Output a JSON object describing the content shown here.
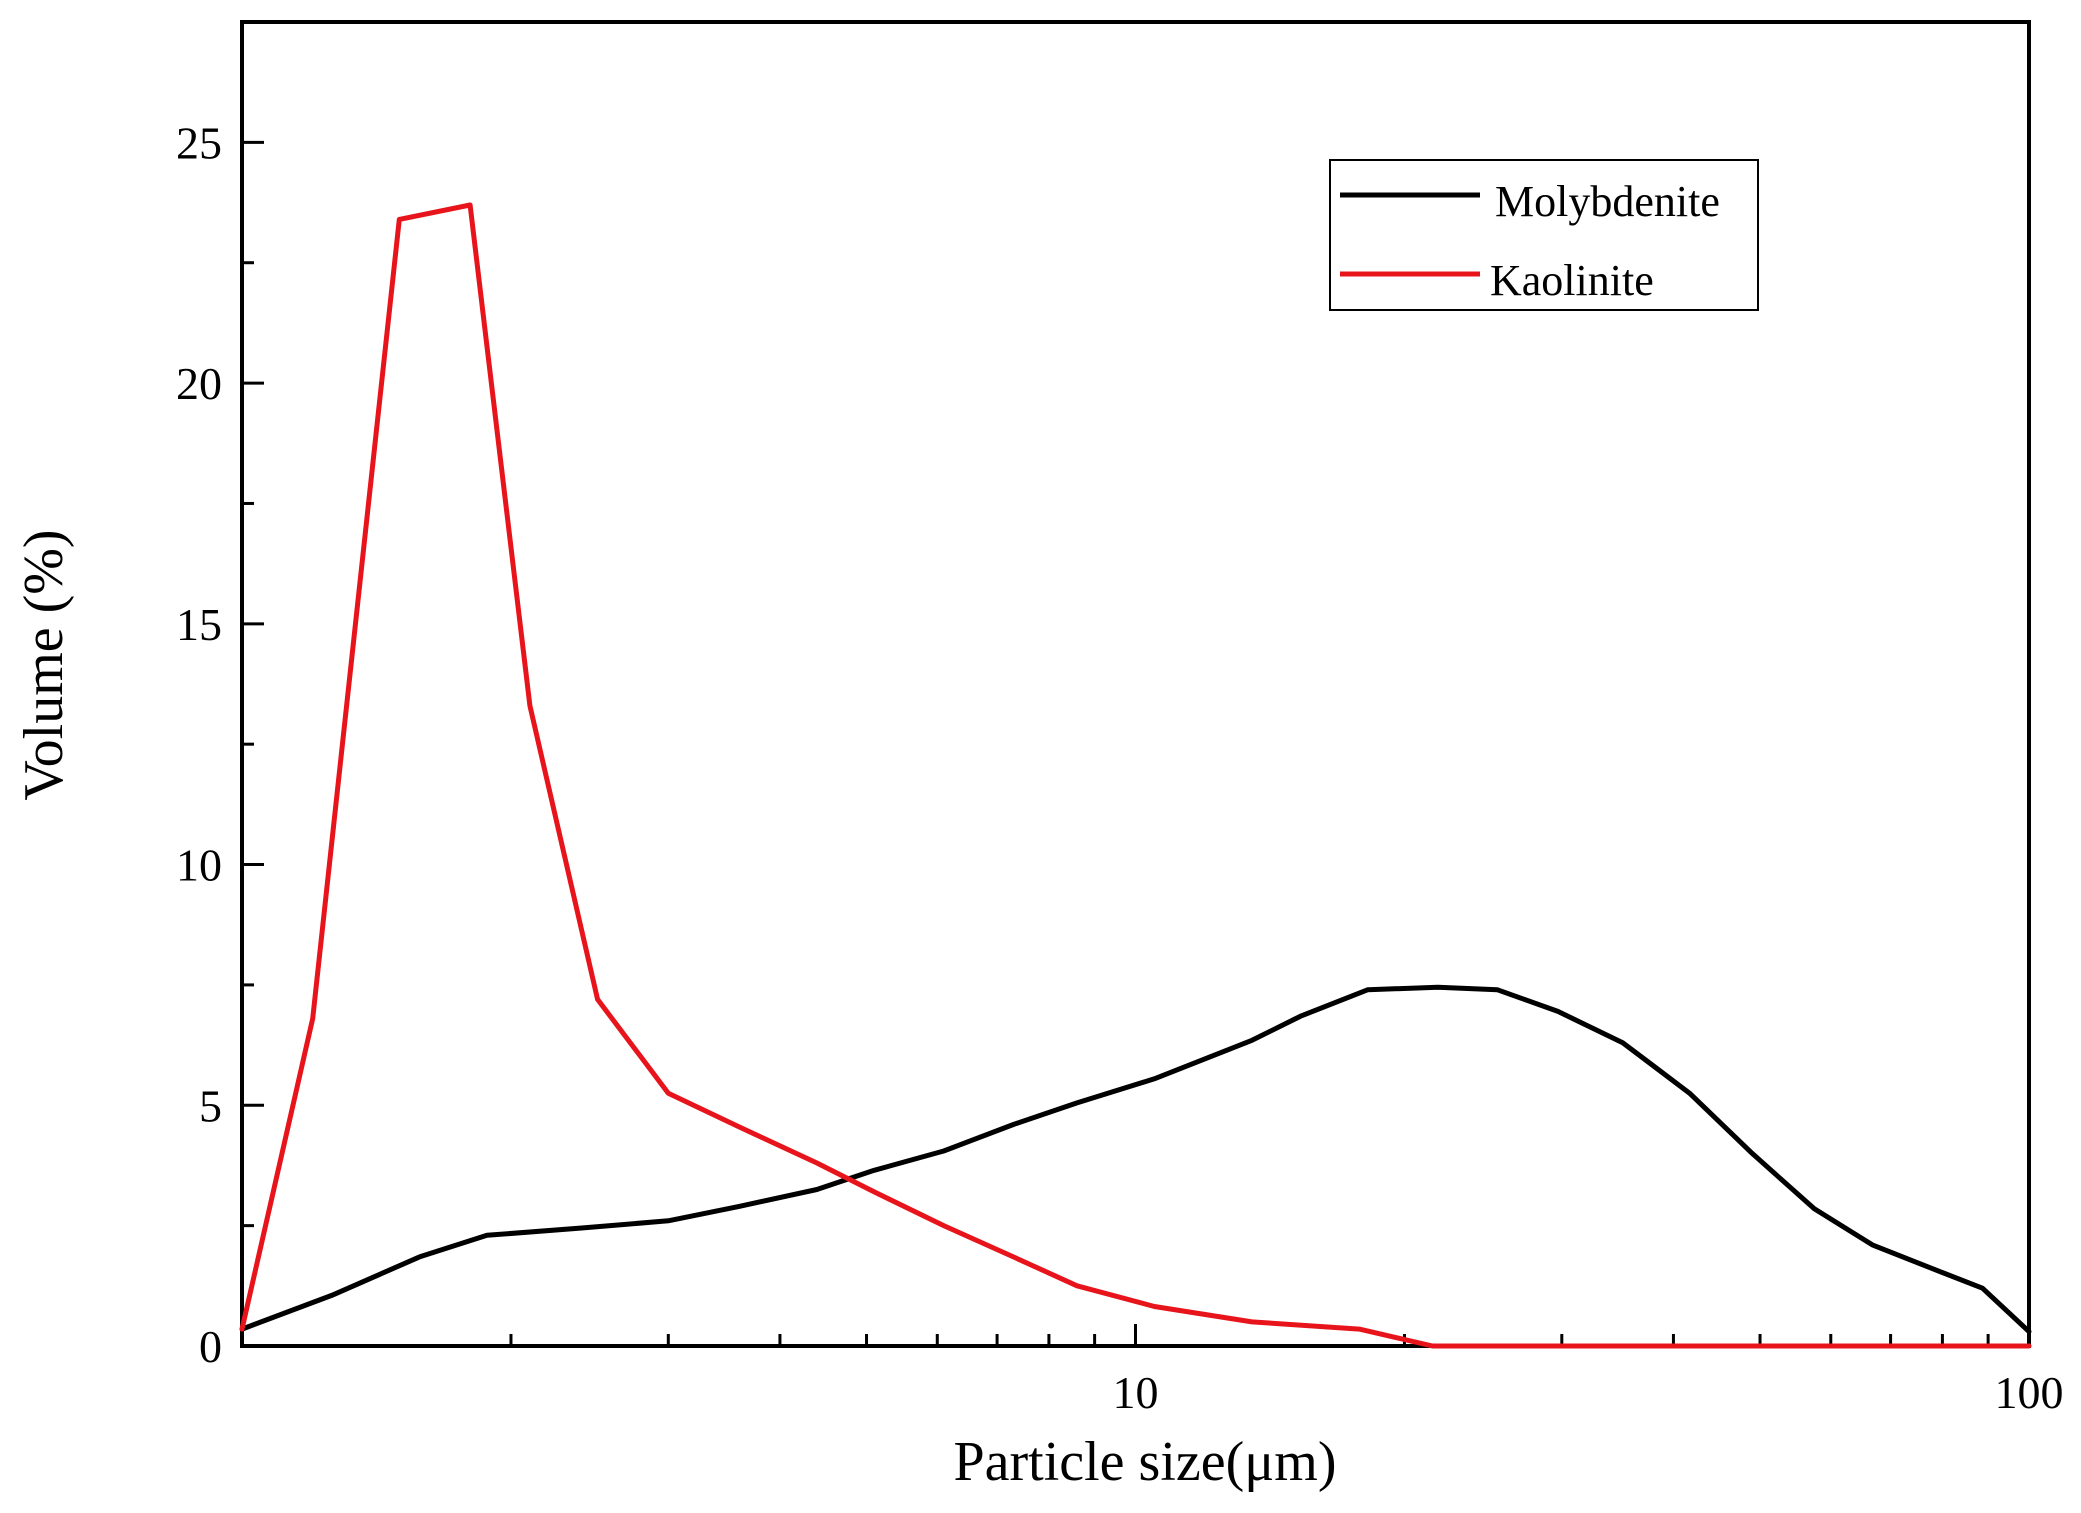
{
  "chart_data": {
    "type": "line",
    "title": "",
    "xlabel": "Particle size(μm)",
    "ylabel": "Volume (%)",
    "xscale": "log",
    "xlim": [
      1.0,
      100
    ],
    "ylim": [
      0,
      27.5
    ],
    "x_ticks": [
      10,
      100
    ],
    "x_tick_labels": [
      "10",
      "100"
    ],
    "y_ticks": [
      0,
      5,
      10,
      15,
      20,
      25
    ],
    "y_tick_labels": [
      "0",
      "5",
      "10",
      "15",
      "20",
      "25"
    ],
    "grid": false,
    "legend_position": "top-right",
    "series": [
      {
        "name": "Molybdenite",
        "color": "#000000",
        "x": [
          1.0,
          1.26,
          1.58,
          1.88,
          2.4,
          3.0,
          3.6,
          4.4,
          5.1,
          6.1,
          7.3,
          8.6,
          10.5,
          13.5,
          15.3,
          18.2,
          21.8,
          25.4,
          29.7,
          35.1,
          41.7,
          49.0,
          57.5,
          66.8,
          79.4,
          88.7,
          100
        ],
        "values": [
          0.35,
          1.05,
          1.85,
          2.3,
          2.45,
          2.6,
          2.9,
          3.25,
          3.65,
          4.05,
          4.6,
          5.05,
          5.55,
          6.35,
          6.85,
          7.4,
          7.45,
          7.4,
          6.95,
          6.3,
          5.25,
          4.0,
          2.85,
          2.1,
          1.55,
          1.2,
          0.3
        ]
      },
      {
        "name": "Kaolinite",
        "color": "#e8141c",
        "x": [
          1.0,
          1.2,
          1.5,
          1.8,
          2.1,
          2.5,
          3.0,
          3.6,
          4.4,
          5.1,
          6.1,
          7.3,
          8.6,
          10.5,
          13.5,
          17.8,
          21.5,
          25.5,
          34.0,
          48.0,
          100
        ],
        "values": [
          0.35,
          6.8,
          23.4,
          23.7,
          13.3,
          7.2,
          5.25,
          4.55,
          3.8,
          3.2,
          2.5,
          1.85,
          1.25,
          0.82,
          0.5,
          0.35,
          0.0,
          0.0,
          0.0,
          0.0,
          0.0
        ]
      }
    ]
  }
}
